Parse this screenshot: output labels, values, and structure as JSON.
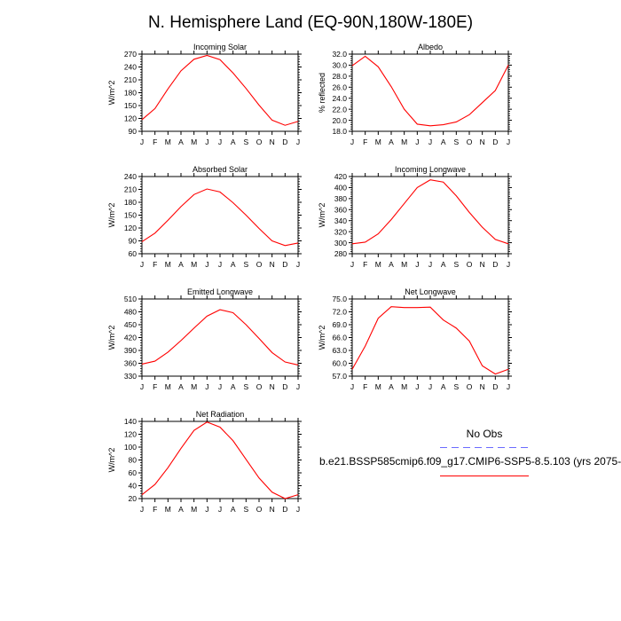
{
  "figure": {
    "title": "N. Hemisphere Land (EQ-90N,180W-180E)",
    "legend": {
      "obs_label": "No Obs",
      "model_label": "b.e21.BSSP585cmip6.f09_g17.CMIP6-SSP5-8.5.103 (yrs 2075-",
      "obs_color": "#6b6bff",
      "model_color": "#ff0000"
    },
    "line_color": "#ff0000"
  },
  "chart_data": [
    {
      "type": "line",
      "title": "Incoming Solar",
      "ylabel": "W/m^2",
      "categories": [
        "J",
        "F",
        "M",
        "A",
        "M",
        "J",
        "J",
        "A",
        "S",
        "O",
        "N",
        "D",
        "J"
      ],
      "ylim": [
        90,
        270
      ],
      "yticks": [
        90,
        120,
        150,
        180,
        210,
        240,
        270
      ],
      "yticklabels": [
        "90",
        "120",
        "150",
        "180",
        "210",
        "240",
        "270"
      ],
      "values": [
        117,
        143,
        189,
        231,
        258,
        267,
        257,
        226,
        190,
        151,
        116,
        104,
        113
      ]
    },
    {
      "type": "line",
      "title": "Albedo",
      "ylabel": "% reflected",
      "categories": [
        "J",
        "F",
        "M",
        "A",
        "M",
        "J",
        "J",
        "A",
        "S",
        "O",
        "N",
        "D",
        "J"
      ],
      "ylim": [
        18,
        32
      ],
      "yticks": [
        18,
        20,
        22,
        24,
        26,
        28,
        30,
        32
      ],
      "yticklabels": [
        "18.0",
        "20.0",
        "22.0",
        "24.0",
        "26.0",
        "28.0",
        "30.0",
        "32.0"
      ],
      "values": [
        29.9,
        31.6,
        29.7,
        26.1,
        22.0,
        19.3,
        19.0,
        19.2,
        19.7,
        21.0,
        23.2,
        25.4,
        30.0
      ]
    },
    {
      "type": "line",
      "title": "Absorbed Solar",
      "ylabel": "W/m^2",
      "categories": [
        "J",
        "F",
        "M",
        "A",
        "M",
        "J",
        "J",
        "A",
        "S",
        "O",
        "N",
        "D",
        "J"
      ],
      "ylim": [
        60,
        240
      ],
      "yticks": [
        60,
        90,
        120,
        150,
        180,
        210,
        240
      ],
      "yticklabels": [
        "60",
        "90",
        "120",
        "150",
        "180",
        "210",
        "240"
      ],
      "values": [
        88,
        108,
        138,
        170,
        198,
        211,
        204,
        179,
        150,
        119,
        90,
        79,
        85
      ]
    },
    {
      "type": "line",
      "title": "Incoming Longwave",
      "ylabel": "W/m^2",
      "categories": [
        "J",
        "F",
        "M",
        "A",
        "M",
        "J",
        "J",
        "A",
        "S",
        "O",
        "N",
        "D",
        "J"
      ],
      "ylim": [
        280,
        420
      ],
      "yticks": [
        280,
        300,
        320,
        340,
        360,
        380,
        400,
        420
      ],
      "yticklabels": [
        "280",
        "300",
        "320",
        "340",
        "360",
        "380",
        "400",
        "420"
      ],
      "values": [
        298,
        301,
        316,
        342,
        371,
        400,
        414,
        410,
        385,
        355,
        328,
        306,
        298
      ]
    },
    {
      "type": "line",
      "title": "Emitted Longwave",
      "ylabel": "W/m^2",
      "categories": [
        "J",
        "F",
        "M",
        "A",
        "M",
        "J",
        "J",
        "A",
        "S",
        "O",
        "N",
        "D",
        "J"
      ],
      "ylim": [
        330,
        510
      ],
      "yticks": [
        330,
        360,
        390,
        420,
        450,
        480,
        510
      ],
      "yticklabels": [
        "330",
        "360",
        "390",
        "420",
        "450",
        "480",
        "510"
      ],
      "values": [
        358,
        365,
        386,
        413,
        442,
        470,
        485,
        478,
        450,
        418,
        385,
        363,
        356
      ]
    },
    {
      "type": "line",
      "title": "Net Longwave",
      "ylabel": "W/m^2",
      "categories": [
        "J",
        "F",
        "M",
        "A",
        "M",
        "J",
        "J",
        "A",
        "S",
        "O",
        "N",
        "D",
        "J"
      ],
      "ylim": [
        57,
        75
      ],
      "yticks": [
        57,
        60,
        63,
        66,
        69,
        72,
        75
      ],
      "yticklabels": [
        "57.0",
        "60.0",
        "63.0",
        "66.0",
        "69.0",
        "72.0",
        "75.0"
      ],
      "values": [
        58.6,
        64.0,
        70.5,
        73.2,
        73.0,
        73.0,
        73.1,
        70.1,
        68.2,
        65.2,
        59.4,
        57.5,
        58.6
      ]
    },
    {
      "type": "line",
      "title": "Net Radiation",
      "ylabel": "W/m^2",
      "categories": [
        "J",
        "F",
        "M",
        "A",
        "M",
        "J",
        "J",
        "A",
        "S",
        "O",
        "N",
        "D",
        "J"
      ],
      "ylim": [
        20,
        140
      ],
      "yticks": [
        20,
        40,
        60,
        80,
        100,
        120,
        140
      ],
      "yticklabels": [
        "20",
        "40",
        "60",
        "80",
        "100",
        "120",
        "140"
      ],
      "values": [
        26,
        42,
        68,
        98,
        126,
        139,
        131,
        110,
        81,
        52,
        30,
        20,
        26
      ]
    }
  ]
}
